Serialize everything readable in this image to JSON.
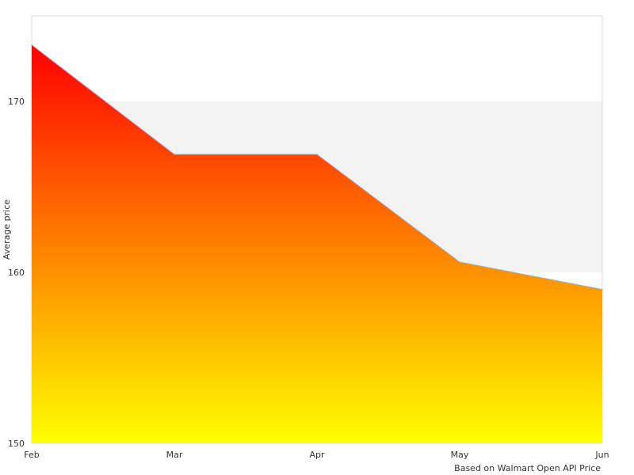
{
  "chart_data": {
    "type": "area",
    "title": "",
    "xlabel": "",
    "ylabel": "Average price",
    "categories": [
      "Feb",
      "Mar",
      "Apr",
      "May",
      "Jun"
    ],
    "series": [
      {
        "values": [
          173.3,
          166.9,
          166.9,
          160.6,
          159.0
        ]
      }
    ],
    "ylim": [
      150,
      175
    ],
    "yticks": [
      150,
      160,
      170
    ],
    "grid": "alternating-bands",
    "legend": "none",
    "credit": "Based on Walmart Open API Price",
    "colors": {
      "gradient_top": "#ff0000",
      "gradient_bottom": "#ffff00",
      "line": "#7cb5ec",
      "band": "#f3f3f3",
      "frame": "#dddddd"
    }
  }
}
